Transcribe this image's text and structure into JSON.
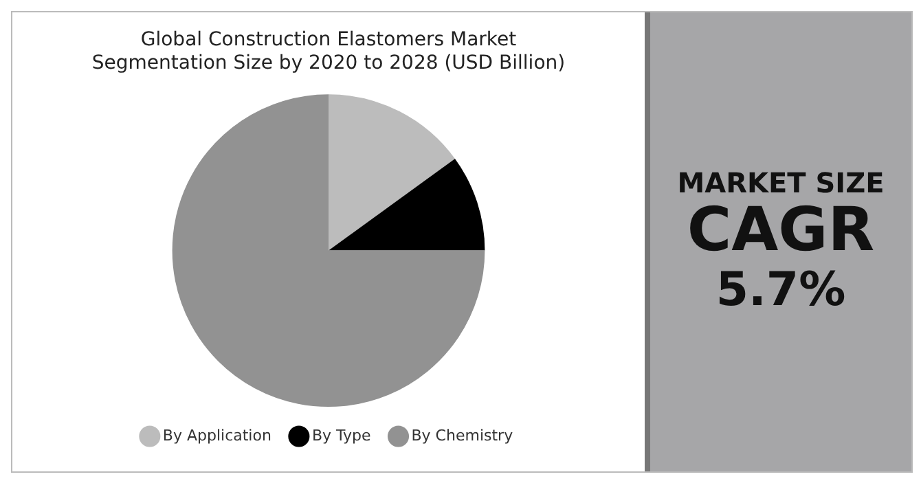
{
  "chart_data": {
    "type": "pie",
    "title": [
      "Global Construction Elastomers Market",
      "Segmentation Size by 2020 to 2028 (USD Billion)"
    ],
    "categories": [
      "By Application",
      "By Type",
      "By Chemistry"
    ],
    "values": [
      15,
      10,
      75
    ],
    "colors": [
      "#bcbcbc",
      "#000000",
      "#929292"
    ],
    "legend": "bottom",
    "annotations": [
      "MARKET SIZE",
      "CAGR",
      "5.7%"
    ]
  }
}
